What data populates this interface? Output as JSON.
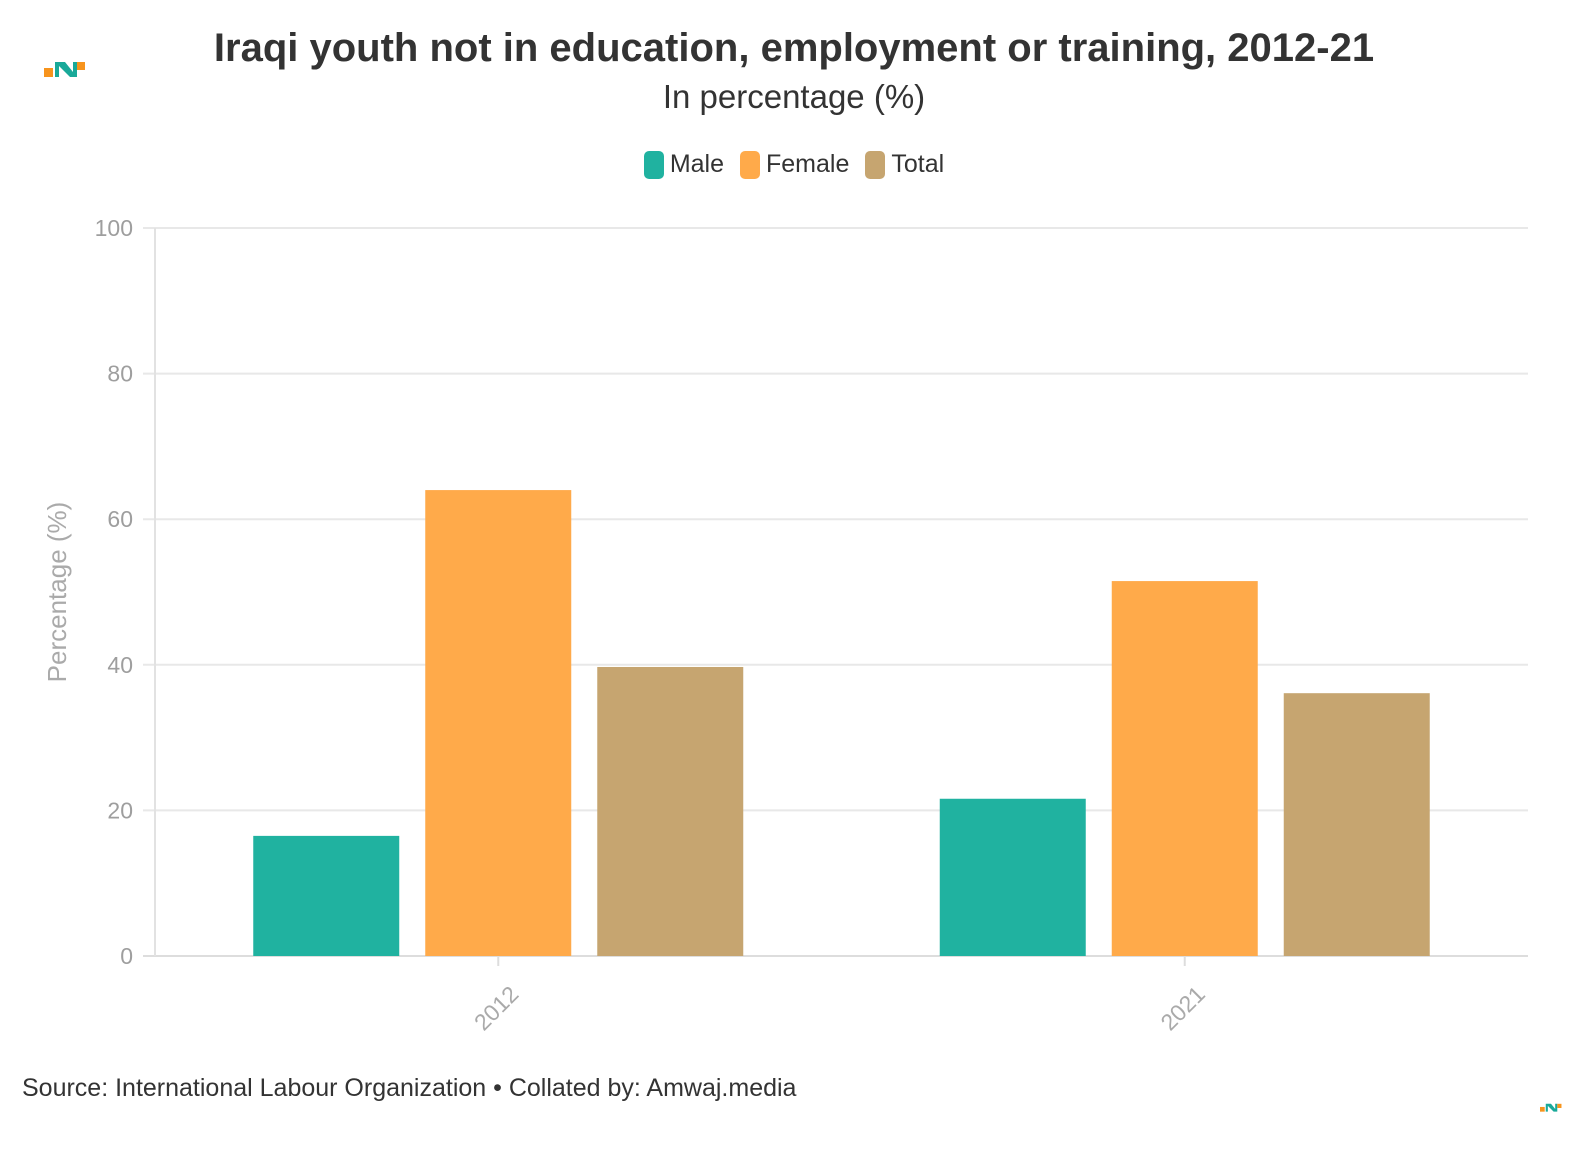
{
  "header": {
    "title": "Iraqi youth not in education, employment or training, 2012-21",
    "subtitle": "In percentage (%)"
  },
  "footer": {
    "source": "Source: International Labour Organization • Collated by: Amwaj.media"
  },
  "brand": {
    "logo_icon": "amwaj-logo-icon",
    "colors": {
      "orange": "#F7941D",
      "teal": "#19A999"
    }
  },
  "chart_data": {
    "type": "bar",
    "title": "Iraqi youth not in education, employment or training, 2012-21",
    "subtitle": "In percentage (%)",
    "xlabel": "",
    "ylabel": "Percentage (%)",
    "categories": [
      "2012",
      "2021"
    ],
    "series": [
      {
        "name": "Male",
        "values": [
          16.5,
          21.6
        ],
        "color": "#20B2A0"
      },
      {
        "name": "Female",
        "values": [
          64.0,
          51.5
        ],
        "color": "#FFAA4A"
      },
      {
        "name": "Total",
        "values": [
          39.7,
          36.1
        ],
        "color": "#C6A570"
      }
    ],
    "ylim": [
      0,
      100
    ],
    "yticks": [
      "0",
      "20",
      "40",
      "60",
      "80",
      "100"
    ],
    "grid": true,
    "legend_position": "top-center"
  }
}
